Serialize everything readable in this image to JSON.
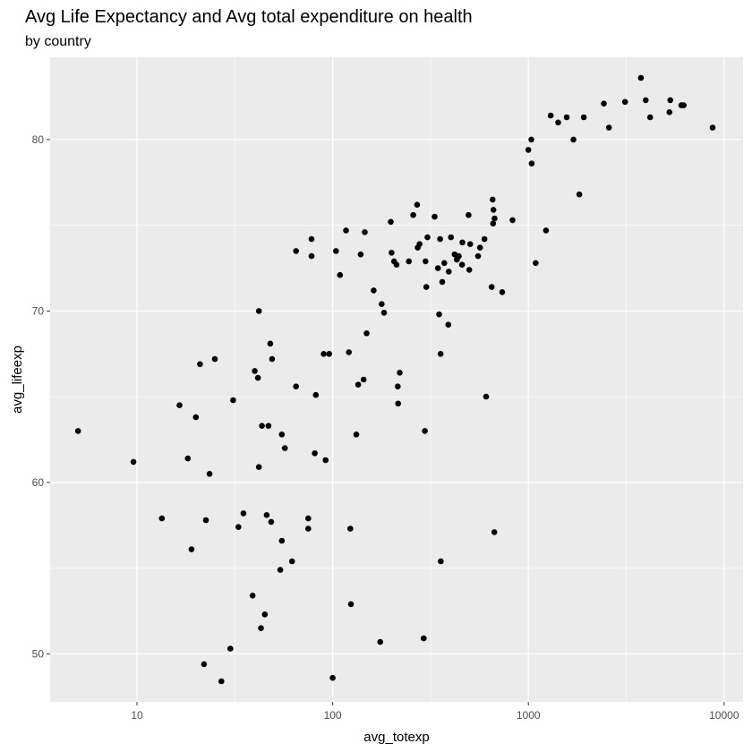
{
  "chart_data": {
    "type": "scatter",
    "title": "Avg Life Expectancy and Avg total expenditure on health",
    "subtitle": "by country",
    "xlabel": "avg_totexp",
    "ylabel": "avg_lifeexp",
    "x_scale": "log10",
    "xlim": [
      3.6,
      12500
    ],
    "ylim": [
      47.2,
      84.8
    ],
    "x_ticks": [
      10,
      100,
      1000,
      10000
    ],
    "x_tick_labels": [
      "10",
      "100",
      "1000",
      "10000"
    ],
    "y_ticks": [
      50,
      60,
      70,
      80
    ],
    "y_tick_labels": [
      "50",
      "60",
      "70",
      "80"
    ],
    "grid": true,
    "colors": {
      "panel": "#ebebeb",
      "grid": "#ffffff",
      "point": "#000000",
      "tick": "#4d4d4d"
    },
    "points": [
      [
        5,
        63.0
      ],
      [
        9.6,
        61.2
      ],
      [
        13.4,
        57.9
      ],
      [
        16.5,
        64.5
      ],
      [
        18.2,
        61.4
      ],
      [
        19,
        56.1
      ],
      [
        20,
        63.8
      ],
      [
        21,
        66.9
      ],
      [
        22,
        49.4
      ],
      [
        22.5,
        57.8
      ],
      [
        23.5,
        60.5
      ],
      [
        25,
        67.2
      ],
      [
        27,
        48.4
      ],
      [
        30,
        50.3
      ],
      [
        31,
        64.8
      ],
      [
        33,
        57.4
      ],
      [
        35,
        58.2
      ],
      [
        39,
        53.4
      ],
      [
        40,
        66.5
      ],
      [
        41.5,
        66.1
      ],
      [
        42,
        70.0
      ],
      [
        42,
        60.9
      ],
      [
        43,
        51.5
      ],
      [
        43.5,
        63.3
      ],
      [
        45,
        52.3
      ],
      [
        46,
        58.1
      ],
      [
        47,
        63.3
      ],
      [
        48,
        68.1
      ],
      [
        48.5,
        57.7
      ],
      [
        49,
        67.2
      ],
      [
        55,
        62.8
      ],
      [
        55,
        56.6
      ],
      [
        54,
        54.9
      ],
      [
        57,
        62.0
      ],
      [
        62,
        55.4
      ],
      [
        65,
        65.6
      ],
      [
        65,
        73.5
      ],
      [
        75,
        57.3
      ],
      [
        75,
        57.9
      ],
      [
        78,
        74.2
      ],
      [
        78,
        73.2
      ],
      [
        81,
        61.7
      ],
      [
        82,
        65.1
      ],
      [
        90,
        67.5
      ],
      [
        92,
        61.3
      ],
      [
        96,
        67.5
      ],
      [
        100,
        48.6
      ],
      [
        104,
        73.5
      ],
      [
        109,
        72.1
      ],
      [
        117,
        74.7
      ],
      [
        121,
        67.6
      ],
      [
        123,
        57.3
      ],
      [
        124,
        52.9
      ],
      [
        132,
        62.8
      ],
      [
        135,
        65.7
      ],
      [
        139,
        73.3
      ],
      [
        144,
        66.0
      ],
      [
        146,
        74.6
      ],
      [
        149,
        68.7
      ],
      [
        162,
        71.2
      ],
      [
        175,
        50.7
      ],
      [
        178,
        70.4
      ],
      [
        183,
        69.9
      ],
      [
        198,
        75.2
      ],
      [
        200,
        73.4
      ],
      [
        206,
        72.9
      ],
      [
        212,
        72.7
      ],
      [
        215,
        65.6
      ],
      [
        216,
        64.6
      ],
      [
        220,
        66.4
      ],
      [
        245,
        72.9
      ],
      [
        258,
        75.6
      ],
      [
        270,
        76.2
      ],
      [
        272,
        73.7
      ],
      [
        278,
        73.9
      ],
      [
        292,
        50.9
      ],
      [
        296,
        63.0
      ],
      [
        298,
        72.9
      ],
      [
        301,
        71.4
      ],
      [
        305,
        74.3
      ],
      [
        332,
        75.5
      ],
      [
        345,
        72.5
      ],
      [
        350,
        69.8
      ],
      [
        354,
        74.2
      ],
      [
        356,
        67.5
      ],
      [
        357,
        55.4
      ],
      [
        363,
        71.7
      ],
      [
        372,
        72.8
      ],
      [
        390,
        69.2
      ],
      [
        392,
        72.3
      ],
      [
        402,
        74.3
      ],
      [
        420,
        73.3
      ],
      [
        431,
        73.0
      ],
      [
        441,
        73.2
      ],
      [
        458,
        72.7
      ],
      [
        460,
        74.0
      ],
      [
        495,
        75.6
      ],
      [
        499,
        72.4
      ],
      [
        504,
        73.9
      ],
      [
        553,
        73.2
      ],
      [
        566,
        73.7
      ],
      [
        597,
        74.2
      ],
      [
        608,
        65.0
      ],
      [
        649,
        71.4
      ],
      [
        657,
        76.5
      ],
      [
        660,
        75.1
      ],
      [
        663,
        75.9
      ],
      [
        670,
        57.1
      ],
      [
        672,
        75.4
      ],
      [
        735,
        71.1
      ],
      [
        830,
        75.3
      ],
      [
        1000,
        79.4
      ],
      [
        1035,
        80.0
      ],
      [
        1040,
        78.6
      ],
      [
        1090,
        72.8
      ],
      [
        1230,
        74.7
      ],
      [
        1300,
        81.4
      ],
      [
        1420,
        81.0
      ],
      [
        1570,
        81.3
      ],
      [
        1700,
        80.0
      ],
      [
        1820,
        76.8
      ],
      [
        1920,
        81.3
      ],
      [
        2430,
        82.1
      ],
      [
        2580,
        80.7
      ],
      [
        3120,
        82.2
      ],
      [
        3760,
        83.6
      ],
      [
        3980,
        82.3
      ],
      [
        4190,
        81.3
      ],
      [
        5260,
        81.6
      ],
      [
        5310,
        82.3
      ],
      [
        6050,
        82.0
      ],
      [
        6220,
        82.0
      ],
      [
        8740,
        80.7
      ]
    ]
  }
}
